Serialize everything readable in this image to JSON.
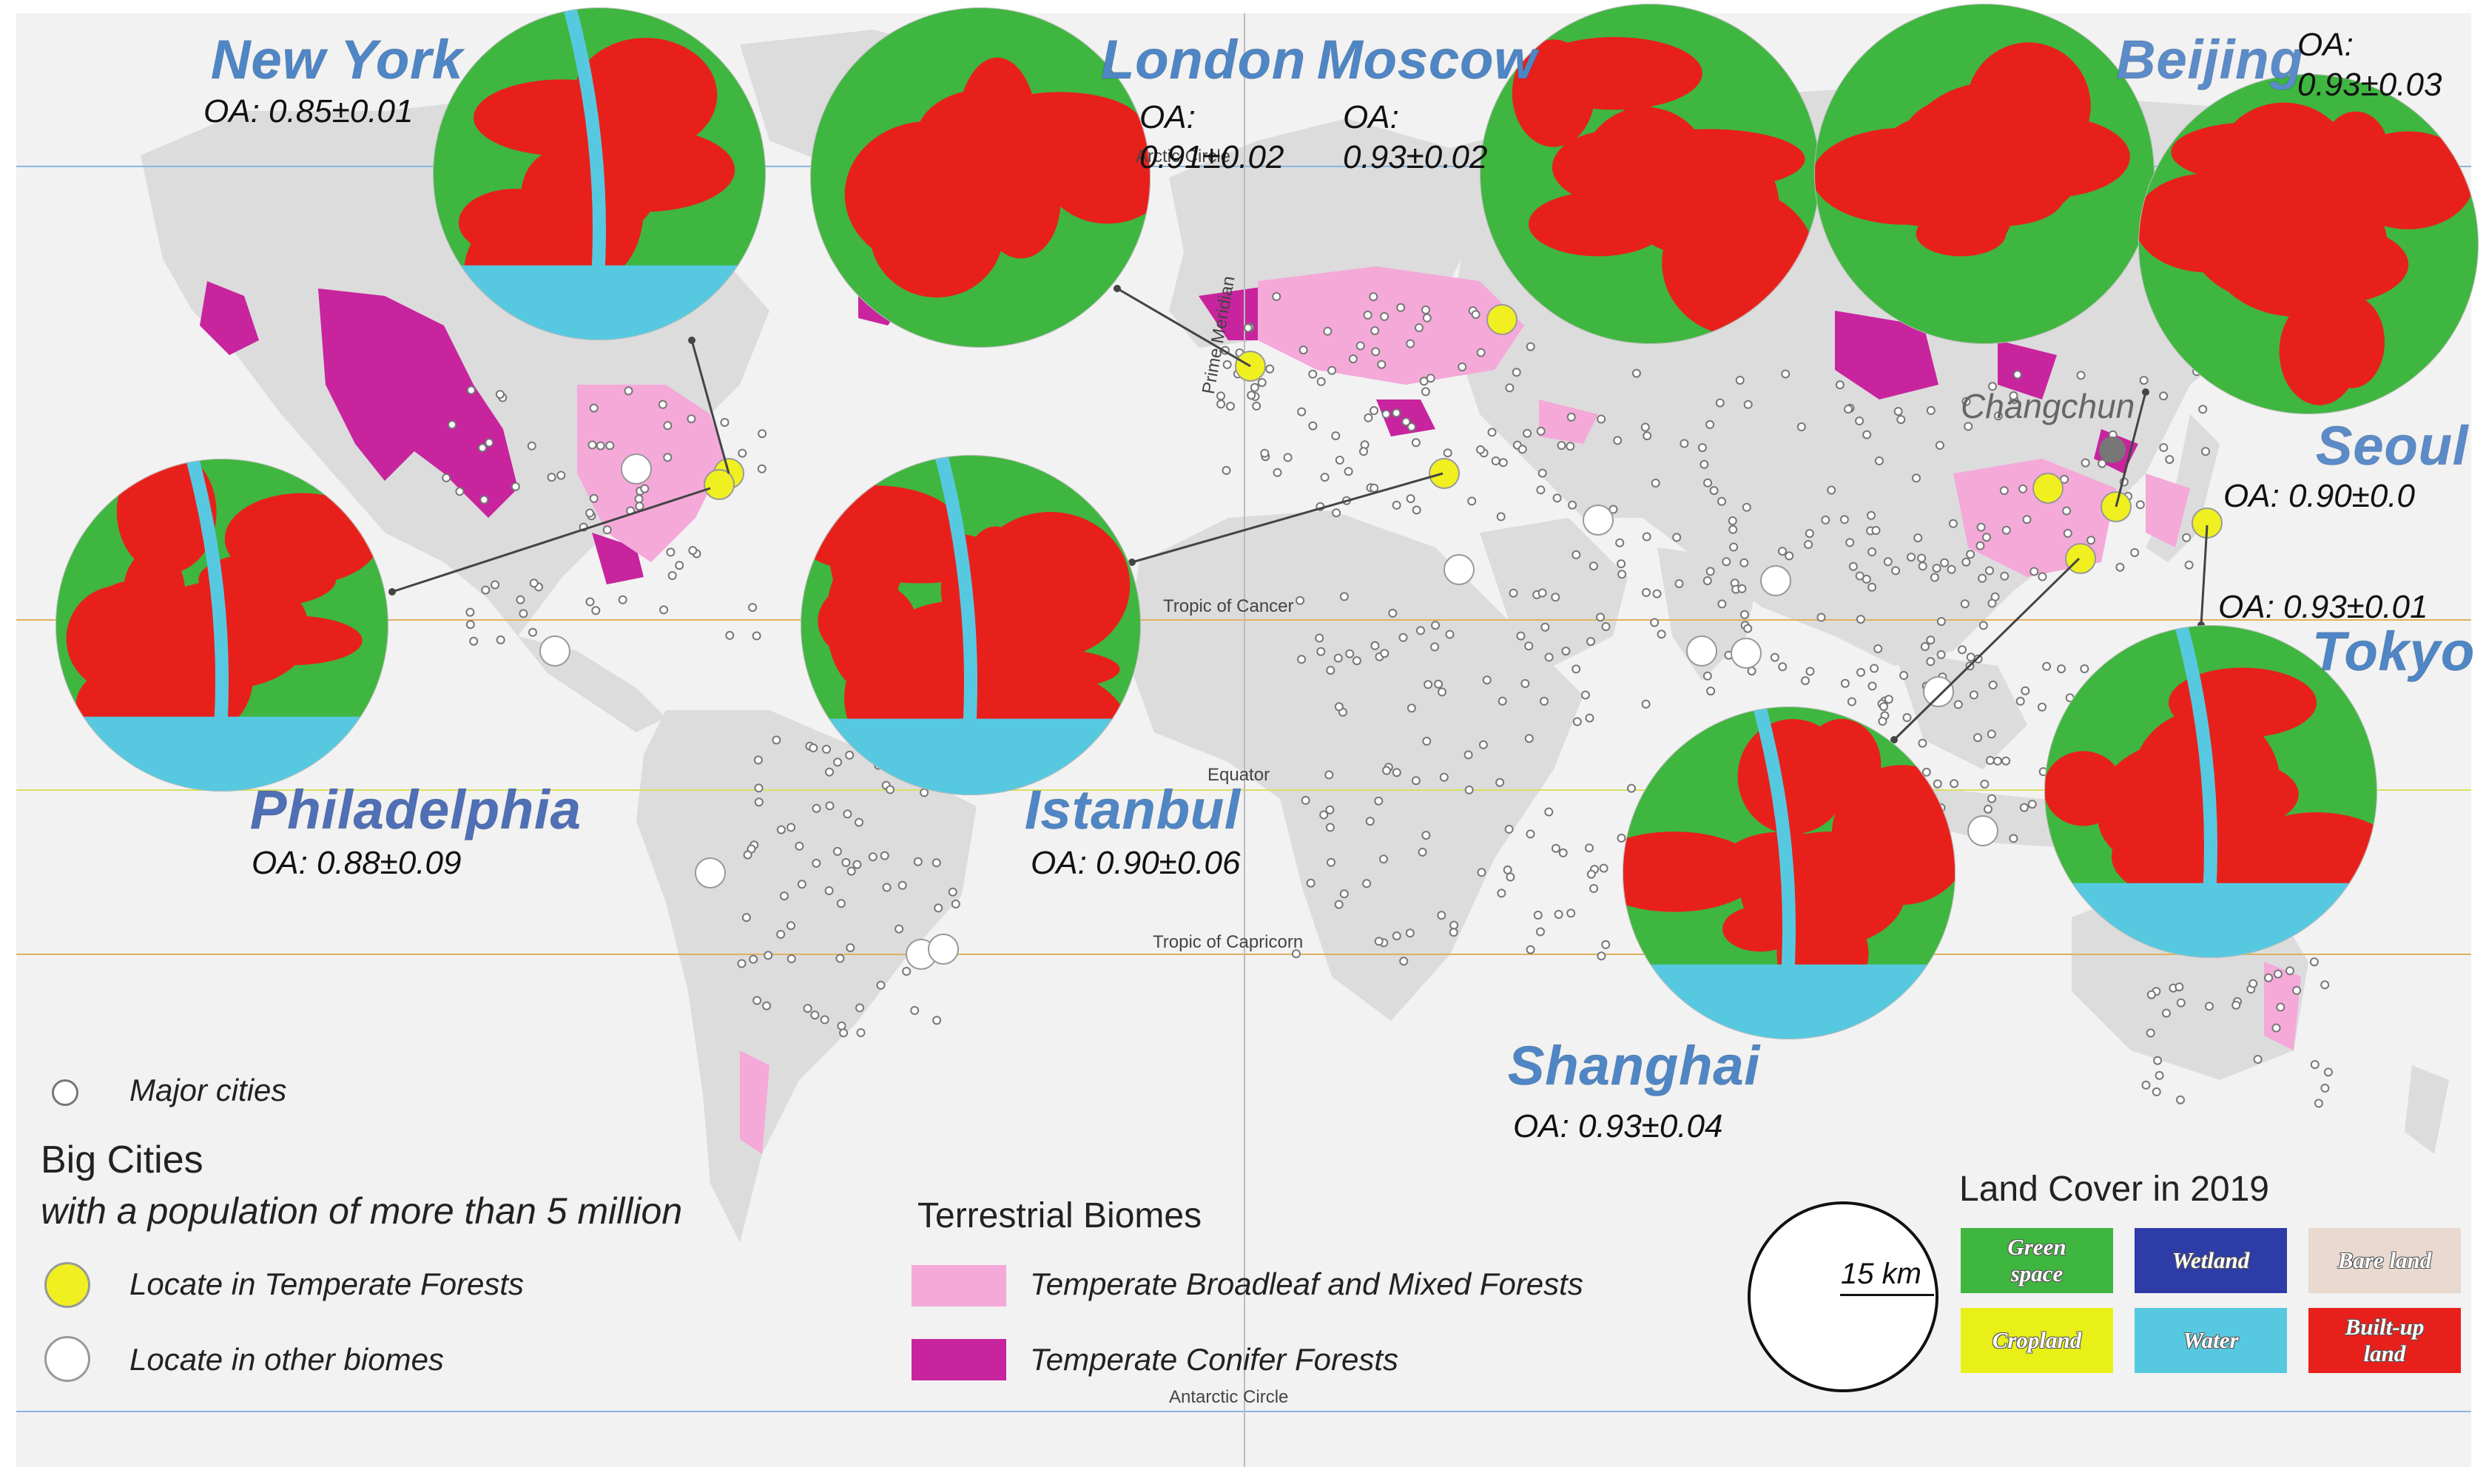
{
  "title": "",
  "geo_labels": {
    "prime_meridian": "Prime Meridian",
    "tropic_cancer": "Tropic of Cancer",
    "equator": "Equator",
    "tropic_capricorn": "Tropic of Capricorn",
    "antarctic_circle": "Antarctic Circle",
    "arctic_circle": "Arctic Circle",
    "changchun": "Changchun"
  },
  "cities": {
    "new_york": {
      "name": "New York",
      "oa_prefix": "OA:",
      "oa_value": "0.85±0.01"
    },
    "london": {
      "name": "London",
      "oa_prefix": "OA:",
      "oa_value": "0.91±0.02"
    },
    "moscow": {
      "name": "Moscow",
      "oa_prefix": "OA:",
      "oa_value": "0.93±0.02"
    },
    "beijing": {
      "name": "Beijing",
      "oa_prefix": "OA:",
      "oa_value": "0.93±0.03"
    },
    "seoul": {
      "name": "Seoul",
      "oa_prefix": "OA:",
      "oa_value": "0.90±0.0"
    },
    "tokyo": {
      "name": "Tokyo",
      "oa_prefix": "OA:",
      "oa_value": "0.93±0.01"
    },
    "philadelphia": {
      "name": "Philadelphia",
      "oa_prefix": "OA:",
      "oa_value": "0.88±0.09"
    },
    "istanbul": {
      "name": "Istanbul",
      "oa_prefix": "OA:",
      "oa_value": "0.90±0.06"
    },
    "shanghai": {
      "name": "Shanghai",
      "oa_prefix": "OA:",
      "oa_value": "0.93±0.04"
    }
  },
  "legend": {
    "major_cities": "Major cities",
    "big_cities_title": "Big Cities",
    "big_cities_subtitle": "with a population of more than 5 million",
    "temperate_forest_cities": "Locate in Temperate Forests",
    "other_biome_cities": "Locate in other biomes",
    "biomes_title": "Terrestrial Biomes",
    "broadleaf": "Temperate Broadleaf and Mixed Forests",
    "conifer": "Temperate Conifer Forests",
    "scale_label": "15 km",
    "land_cover_title": "Land Cover in 2019",
    "classes": [
      {
        "label": "Green space",
        "color": "#3fb63f"
      },
      {
        "label": "Wetland",
        "color": "#2e3ca8"
      },
      {
        "label": "Bare land",
        "color": "#e9d9cf"
      },
      {
        "label": "Cropland",
        "color": "#e8f018"
      },
      {
        "label": "Water",
        "color": "#56c9e0"
      },
      {
        "label": "Built-up land",
        "color": "#e8201c"
      }
    ]
  },
  "colors": {
    "ocean": "#f2f2f2",
    "land": "#dcdcdc",
    "broadleaf": "#f4a9d9",
    "conifer": "#c8249e",
    "temperate_city": "#f0f020",
    "other_city": "#ffffff"
  }
}
